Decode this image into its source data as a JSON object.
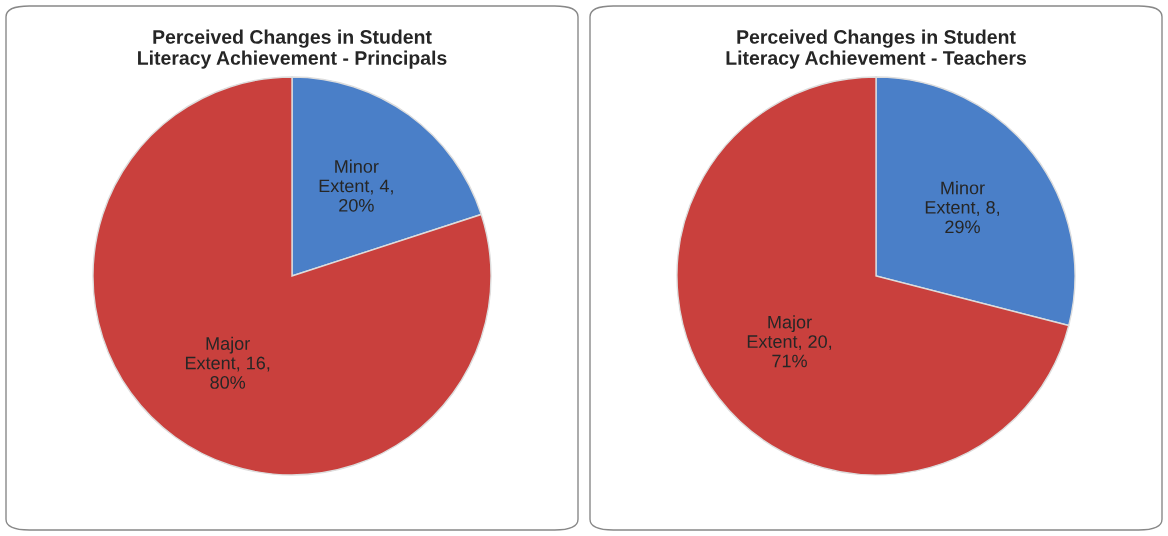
{
  "chart_data": [
    {
      "type": "pie",
      "title": "Perceived Changes in Student Literacy Achievement - Principals",
      "categories": [
        "Minor Extent",
        "Major Extent"
      ],
      "values": [
        20,
        80
      ],
      "value_labels": [
        "4, 20%",
        "16, 80%"
      ],
      "colors": [
        "#4a7fc8",
        "#c9403d"
      ],
      "legend": false
    },
    {
      "type": "pie",
      "title": "Perceived Changes in Student Literacy Achievement - Teachers",
      "categories": [
        "Minor Extent",
        "Major Extent"
      ],
      "values": [
        29,
        71
      ],
      "value_labels": [
        "8, 29%",
        "20, 71%"
      ],
      "colors": [
        "#4a7fc8",
        "#c9403d"
      ],
      "legend": false
    }
  ]
}
